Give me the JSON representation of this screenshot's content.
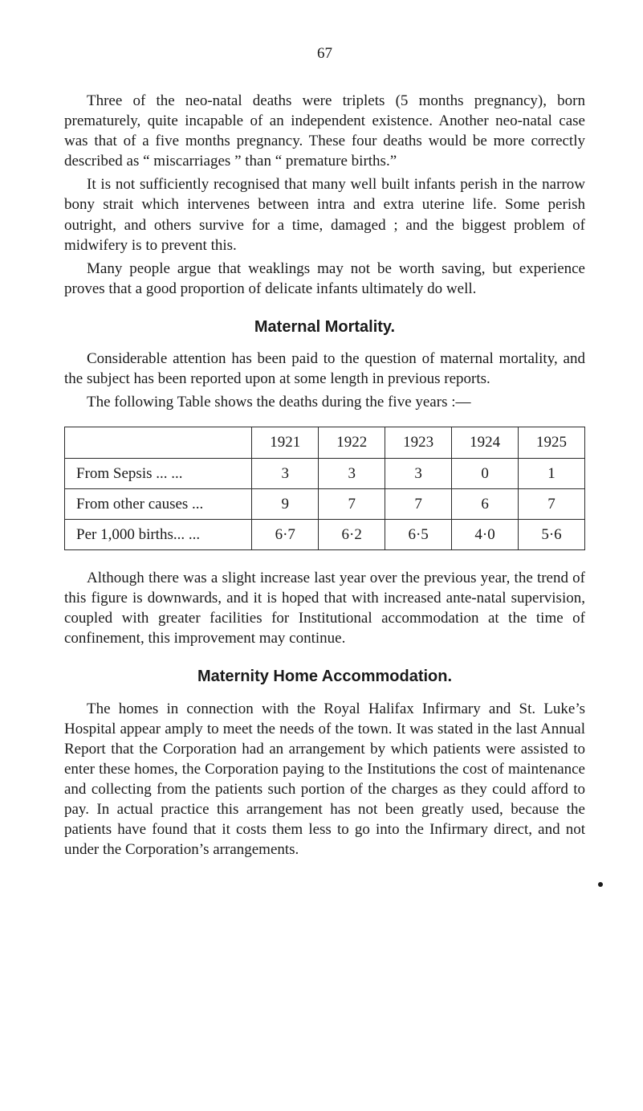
{
  "page_number": "67",
  "para1": "Three of the neo-natal deaths were triplets (5 months pregnancy), born prematurely, quite incapable of an independent existence. Another neo-natal case was that of a five months pregnancy. These four deaths would be more correctly described as “ miscarriages ” than “ premature births.”",
  "para2": "It is not sufficiently recognised that many well built infants perish in the narrow bony strait which intervenes between intra and extra uterine life. Some perish outright, and others survive for a time, damaged ; and the biggest problem of midwifery is to prevent this.",
  "para3": "Many people argue that weaklings may not be worth saving, but experience proves that a good proportion of delicate infants ultimately do well.",
  "heading1": "Maternal Mortality.",
  "para4": "Considerable attention has been paid to the question of maternal mortality, and the subject has been reported upon at some length in previous reports.",
  "para5": "The following Table shows the deaths during the five years :—",
  "table": {
    "type": "table",
    "columns": [
      "",
      "1921",
      "1922",
      "1923",
      "1924",
      "1925"
    ],
    "rows": [
      {
        "label": "From Sepsis     ...     ...",
        "cells": [
          "3",
          "3",
          "3",
          "0",
          "1"
        ]
      },
      {
        "label": "From other causes     ...",
        "cells": [
          "9",
          "7",
          "7",
          "6",
          "7"
        ]
      },
      {
        "label": "Per 1,000 births...     ...",
        "cells": [
          "6·7",
          "6·2",
          "6·5",
          "4·0",
          "5·6"
        ]
      }
    ],
    "border_color": "#2a2a2a",
    "font_size": 19,
    "col_widths": [
      "36%",
      "12.8%",
      "12.8%",
      "12.8%",
      "12.8%",
      "12.8%"
    ]
  },
  "para6": "Although there was a slight increase last year over the previous year, the trend of this figure is downwards, and it is hoped that with increased ante-natal supervision, coupled with greater facilities for Institutional accommodation at the time of confinement, this improvement may continue.",
  "heading2": "Maternity Home Accommodation.",
  "para7": "The homes in connection with the Royal Halifax Infirmary and St. Luke’s Hospital appear amply to meet the needs of the town. It was stated in the last Annual Report that the Corporation had an arrangement by which patients were assisted to enter these homes, the Corporation paying to the Institutions the cost of maintenance and collecting from the patients such portion of the charges as they could afford to pay. In actual practice this arrangement has not been greatly used, because the patients have found that it costs them less to go into the Infirmary direct, and not under the Corporation’s arrangements."
}
